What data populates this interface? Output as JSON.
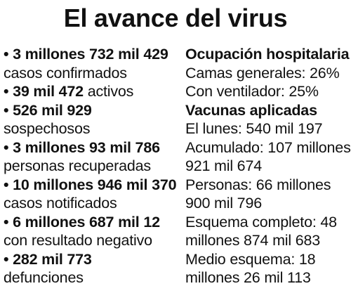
{
  "title": "El avance del virus",
  "left_items": [
    {
      "bullet": "•",
      "number": "3 millones 732 mil 429",
      "text": "casos confirmados"
    },
    {
      "bullet": "•",
      "number": "39 mil 472",
      "text": "activos"
    },
    {
      "bullet": "•",
      "number": "526 mil 929",
      "text": "sospechosos"
    },
    {
      "bullet": "•",
      "number": "3 millones 93 mil 786",
      "text": "personas recuperadas"
    },
    {
      "bullet": "•",
      "number": "10 millones 946 mil 370",
      "text": "casos notificados"
    },
    {
      "bullet": "•",
      "number": "6 millones 687 mil 12",
      "text": "con resultado negativo"
    },
    {
      "bullet": "•",
      "number": "282 mil 773",
      "text": "defunciones"
    }
  ],
  "hospital": {
    "heading": "Ocupación hospitalaria",
    "lines": [
      "Camas generales: 26%",
      "Con ventilador: 25%"
    ]
  },
  "vaccines": {
    "heading": "Vacunas aplicadas",
    "lines": [
      "El lunes: 540 mil 197",
      "Acumulado: 107 millones 921 mil 674",
      "Personas: 66 millones 900 mil 796",
      "Esquema completo: 48 millones 874 mil 683",
      "Medio esquema: 18 millones 26 mil 113"
    ]
  }
}
